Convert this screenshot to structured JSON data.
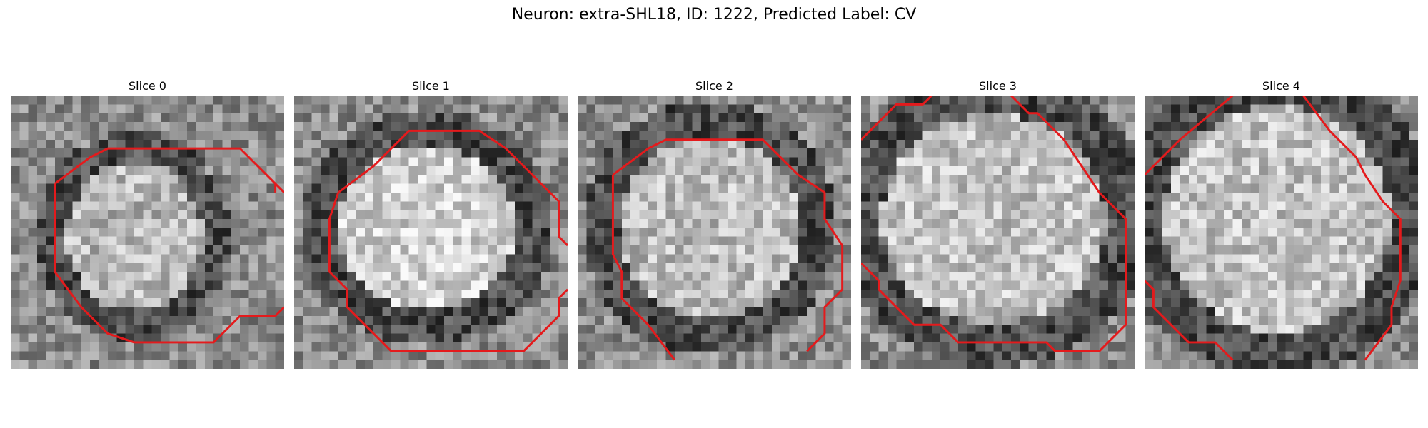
{
  "title": "Neuron: extra-SHL18, ID: 1222, Predicted Label: CV",
  "panels": [
    {
      "label": "Slice 0",
      "seed": 11,
      "brightness": 0.62
    },
    {
      "label": "Slice 1",
      "seed": 23,
      "brightness": 0.72
    },
    {
      "label": "Slice 2",
      "seed": 37,
      "brightness": 0.64
    },
    {
      "label": "Slice 3",
      "seed": 41,
      "brightness": 0.66
    },
    {
      "label": "Slice 4",
      "seed": 53,
      "brightness": 0.66
    }
  ],
  "contour_color": "#e41a1c"
}
